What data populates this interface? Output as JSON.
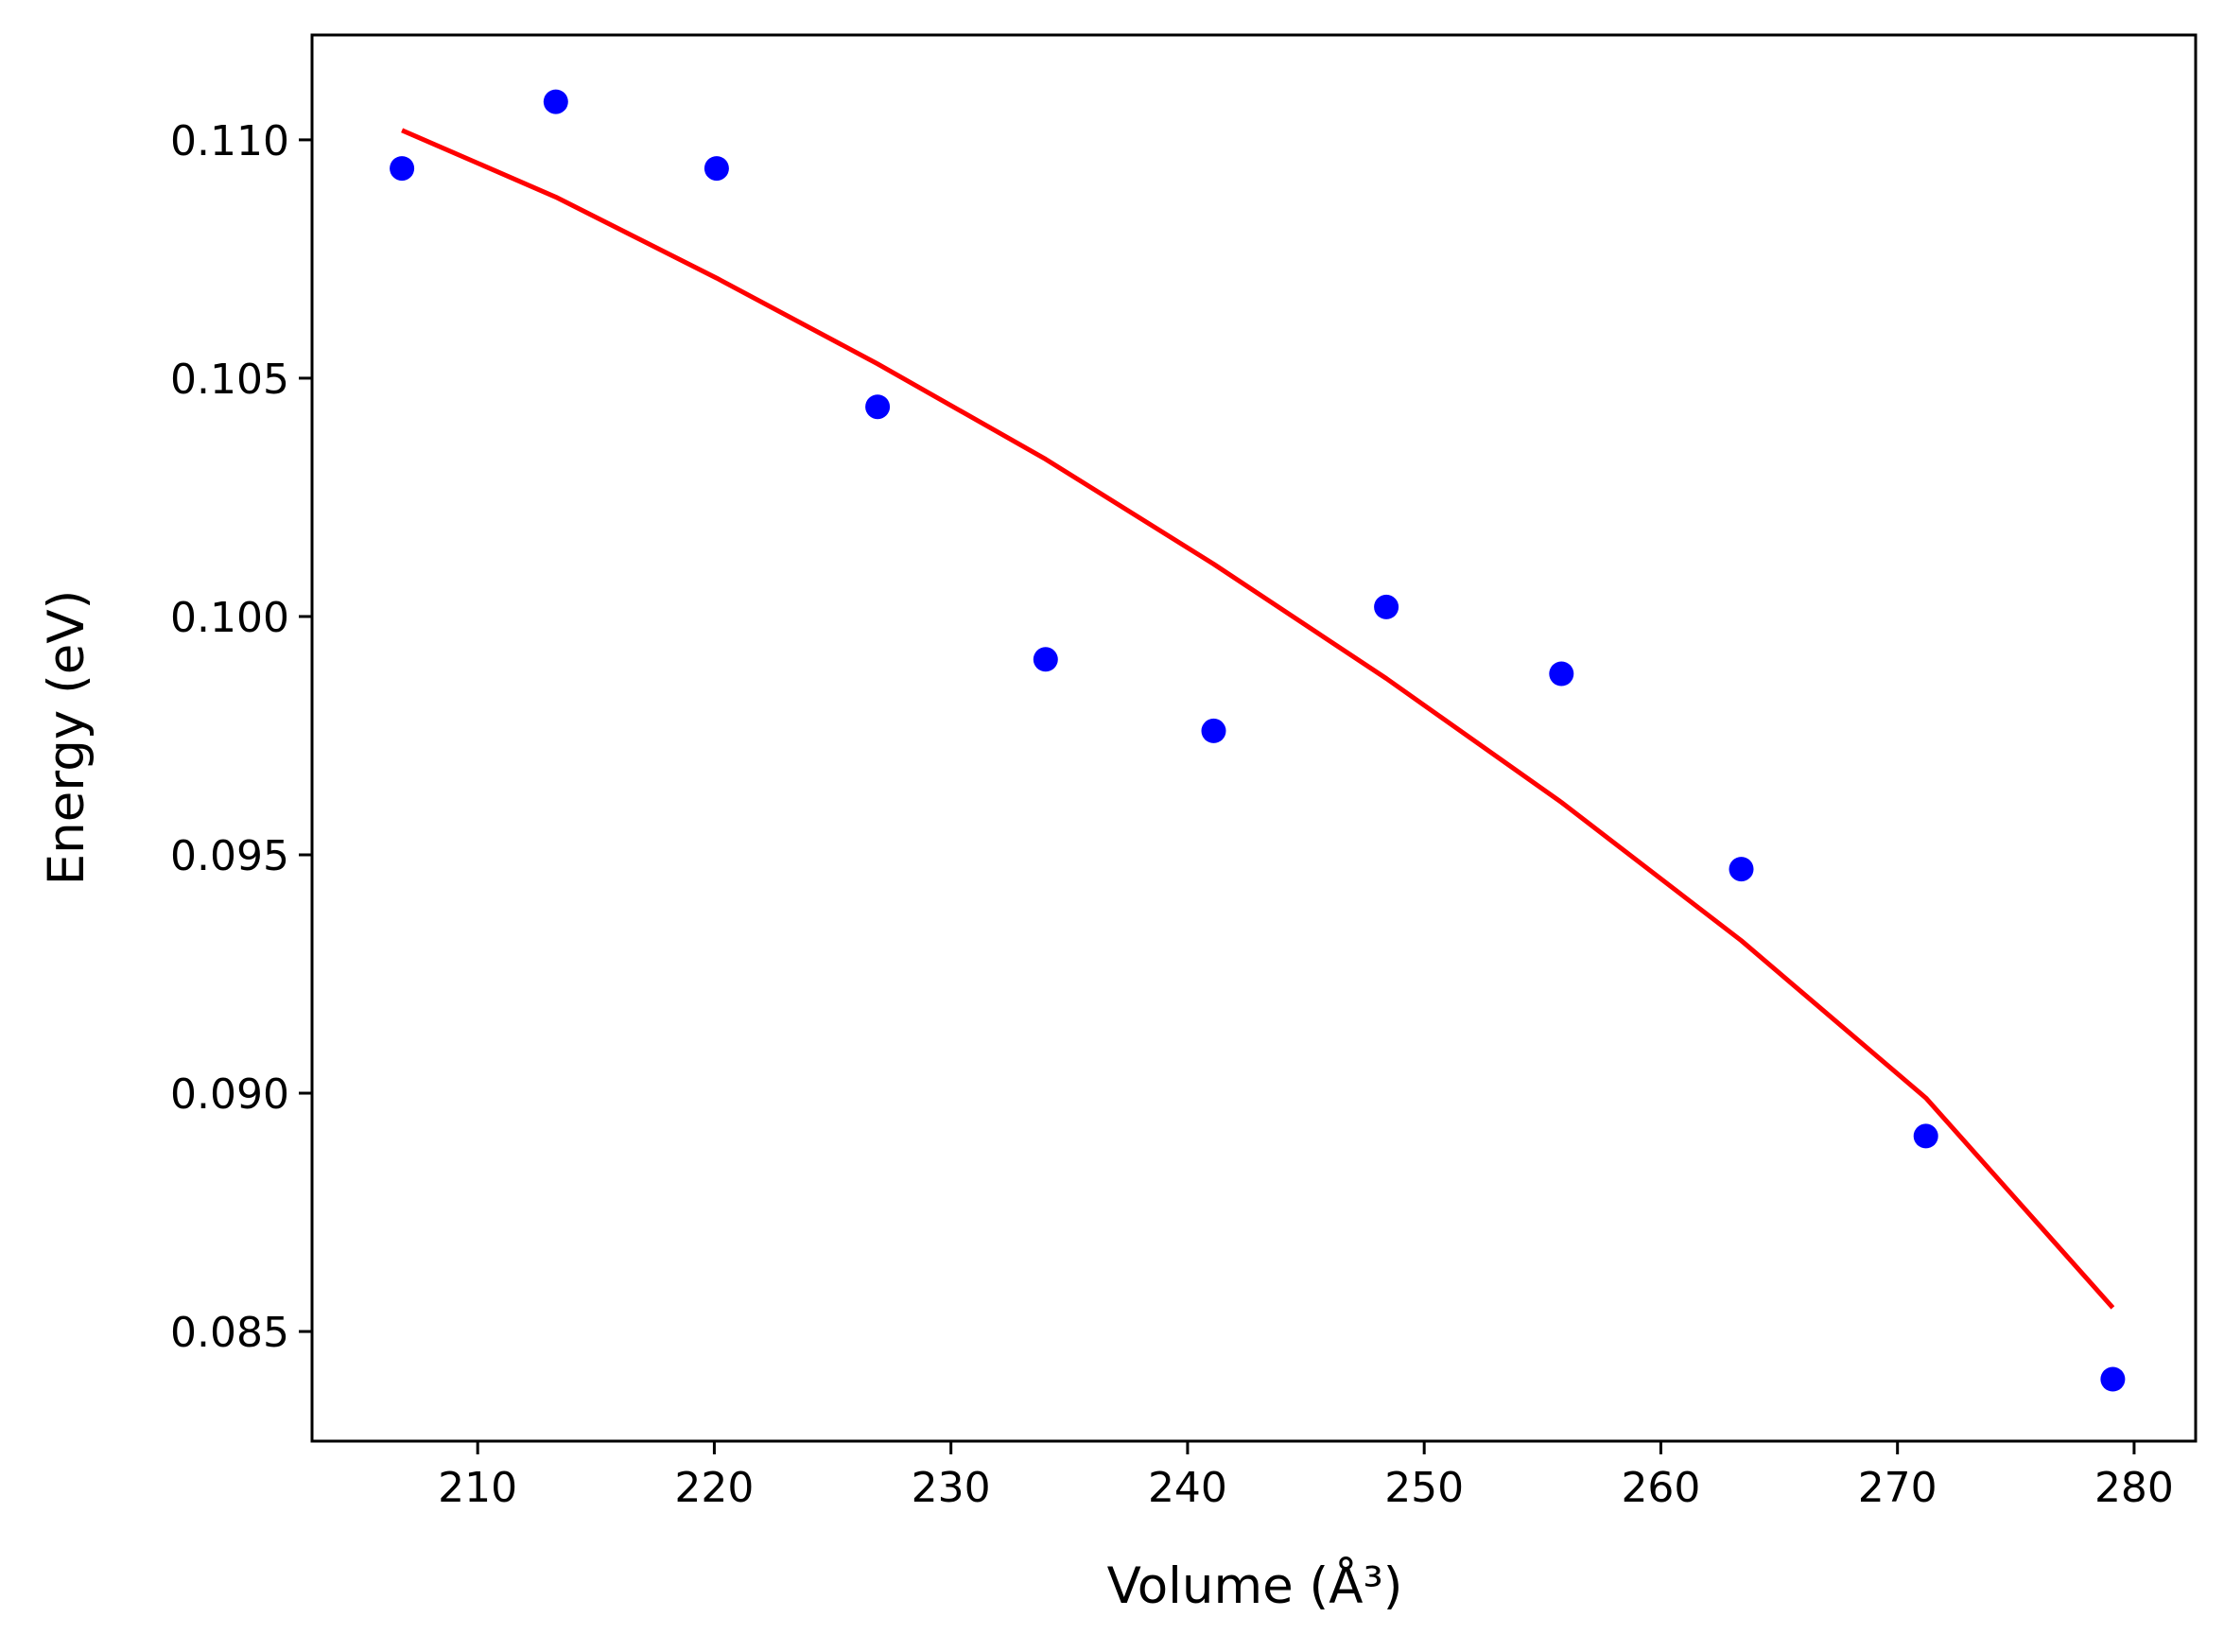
{
  "chart_data": {
    "type": "scatter",
    "title": "",
    "xlabel": "Volume (Å³)",
    "ylabel": "Energy (eV)",
    "xlim": [
      203.0,
      282.6
    ],
    "ylim": [
      0.0827,
      0.1122
    ],
    "x_ticks": [
      210,
      220,
      230,
      240,
      250,
      260,
      270,
      280
    ],
    "x_tick_labels": [
      "210",
      "220",
      "230",
      "240",
      "250",
      "260",
      "270",
      "280"
    ],
    "y_ticks": [
      0.085,
      0.09,
      0.095,
      0.1,
      0.105,
      0.11
    ],
    "y_tick_labels": [
      "0.085",
      "0.090",
      "0.095",
      "0.100",
      "0.105",
      "0.110"
    ],
    "grid": false,
    "legend": "none",
    "series": [
      {
        "kind": "points",
        "color": "#0000ff",
        "x": [
          206.8,
          213.3,
          220.1,
          226.9,
          234.0,
          241.1,
          248.4,
          255.8,
          263.4,
          271.2,
          279.1
        ],
        "y": [
          0.1094,
          0.1108,
          0.1094,
          0.1044,
          0.0991,
          0.0976,
          0.1002,
          0.0988,
          0.0947,
          0.0891,
          0.084
        ]
      },
      {
        "kind": "fit-line",
        "color": "#ff0000",
        "x": [
          206.8,
          213.3,
          220.1,
          226.9,
          234.0,
          241.1,
          248.4,
          255.8,
          263.4,
          271.2,
          279.1
        ],
        "y": [
          0.1102,
          0.1088,
          0.1071,
          0.1053,
          0.1033,
          0.1011,
          0.0987,
          0.0961,
          0.0932,
          0.0899,
          0.0855
        ]
      }
    ]
  }
}
